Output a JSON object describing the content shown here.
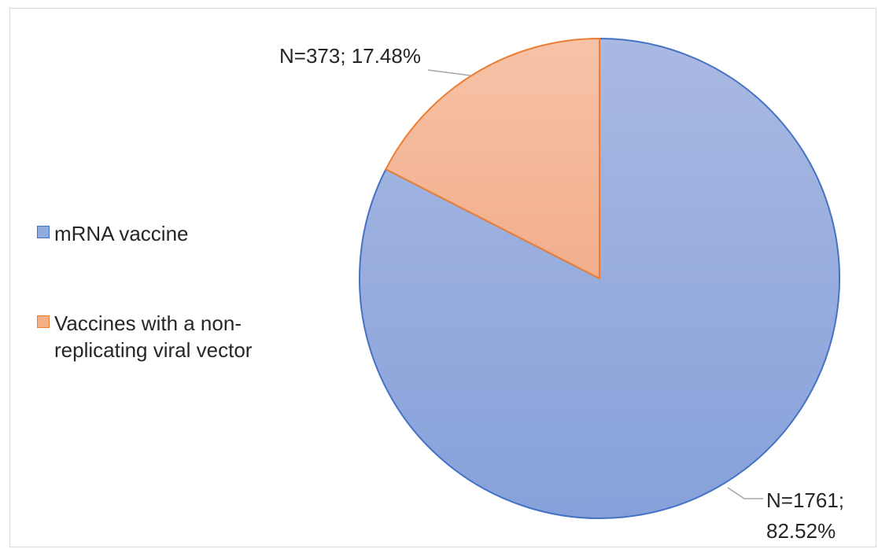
{
  "chart_data": {
    "type": "pie",
    "title": "",
    "slices": [
      {
        "name": "mRNA vaccine",
        "value": 1761,
        "percent": 82.52,
        "color": "#8faadc",
        "edge": "#4472c4",
        "label_line1": "N=1761;",
        "label_line2": "82.52%"
      },
      {
        "name": "Vaccines with a non-replicating viral vector",
        "value": 373,
        "percent": 17.48,
        "color": "#f4b183",
        "edge": "#ed7d31",
        "label_line1": "N=373; 17.48%",
        "label_line2": ""
      }
    ],
    "legend_position": "left",
    "legend": [
      {
        "label": "mRNA vaccine",
        "color": "#8faadc",
        "edge": "#4472c4"
      },
      {
        "label": "Vaccines with a non-replicating viral vector",
        "color": "#f4b183",
        "edge": "#ed7d31"
      }
    ]
  }
}
